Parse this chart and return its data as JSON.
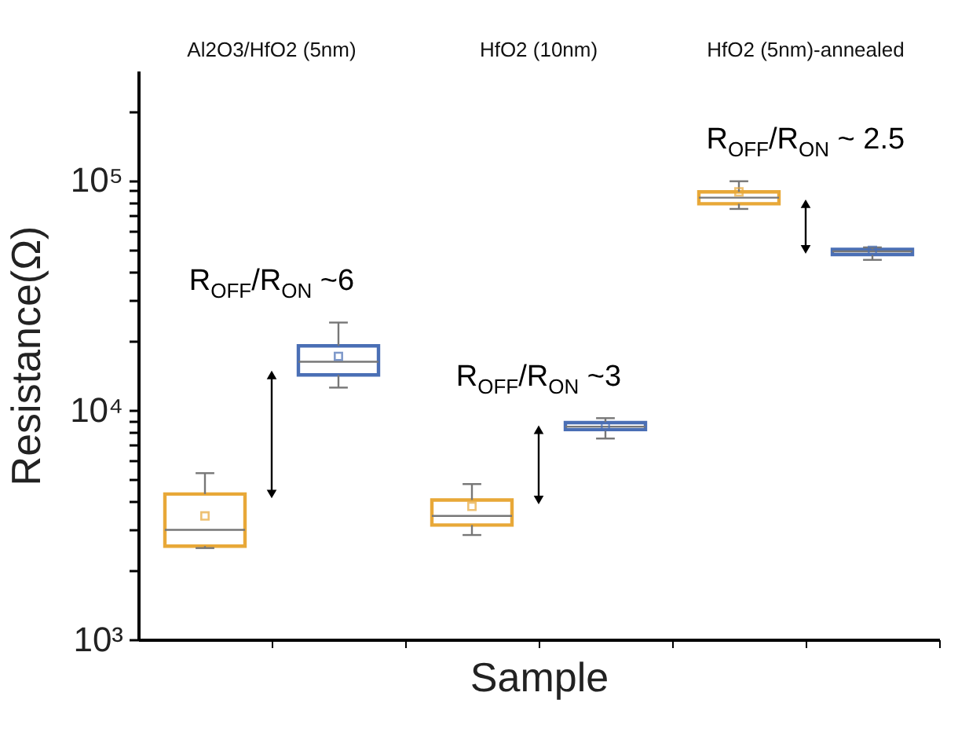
{
  "chart_data": {
    "type": "box",
    "ylabel": "Resistance(Ω)",
    "xlabel": "Sample",
    "categories": [
      null,
      null,
      null,
      null,
      null,
      null
    ],
    "colors": [
      "#e8a838",
      "#4a6fb5",
      "#e8a838",
      "#4a6fb5",
      "#e8a838",
      "#4a6fb5"
    ],
    "boxes": [
      {
        "low": 2500,
        "q1": 2550,
        "median": 3000,
        "q3": 4300,
        "high": 5300,
        "mean": 3450
      },
      {
        "low": 12500,
        "q1": 14200,
        "median": 16200,
        "q3": 19000,
        "high": 24000,
        "mean": 17100
      },
      {
        "low": 2850,
        "q1": 3150,
        "median": 3450,
        "q3": 4050,
        "high": 4750,
        "mean": 3800
      },
      {
        "low": 7500,
        "q1": 8200,
        "median": 8450,
        "q3": 8800,
        "high": 9200,
        "mean": 8450
      },
      {
        "low": 75000,
        "q1": 79000,
        "median": 84000,
        "q3": 89000,
        "high": 99000,
        "mean": 89000
      },
      {
        "low": 45000,
        "q1": 47500,
        "median": 49000,
        "q3": 50000,
        "high": 51000,
        "mean": 49500
      }
    ],
    "annotations": [
      "Al2O3/HfO2 (5nm)",
      "HfO2 (10nm)",
      "HfO2 (5nm)-annealed",
      "R$_{OFF}$/R$_{ON}$ ~6",
      "R$_{OFF}$/R$_{ON}$ ~3",
      "R$_{OFF}$/R$_{ON}$ ~ 2.5"
    ],
    "log": true,
    "ylim": [
      1000,
      300000
    ],
    "yticks": [
      {
        "value": 1000,
        "label": "10³"
      },
      {
        "value": 2000,
        "label": null
      },
      {
        "value": 3000,
        "label": null
      },
      {
        "value": 4000,
        "label": null
      },
      {
        "value": 5000,
        "label": null
      },
      {
        "value": 6000,
        "label": null
      },
      {
        "value": 7000,
        "label": null
      },
      {
        "value": 8000,
        "label": null
      },
      {
        "value": 9000,
        "label": null
      },
      {
        "value": 10000,
        "label": "10⁴"
      },
      {
        "value": 20000,
        "label": null
      },
      {
        "value": 30000,
        "label": null
      },
      {
        "value": 40000,
        "label": null
      },
      {
        "value": 50000,
        "label": null
      },
      {
        "value": 60000,
        "label": null
      },
      {
        "value": 70000,
        "label": null
      },
      {
        "value": 80000,
        "label": null
      },
      {
        "value": 90000,
        "label": null
      },
      {
        "value": 100000,
        "label": "10⁵"
      },
      {
        "value": 200000,
        "label": null
      }
    ],
    "tick_labels": "y",
    "grid": false,
    "legend": false
  }
}
